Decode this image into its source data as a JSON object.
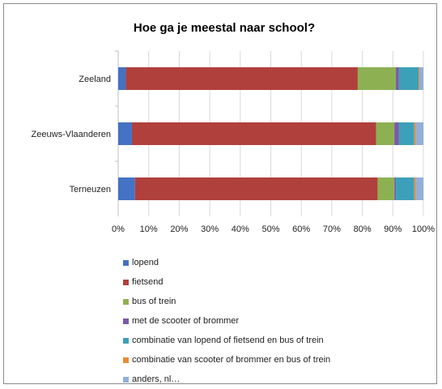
{
  "chart_data": {
    "type": "bar",
    "orientation": "horizontal",
    "stacked": true,
    "title": "Hoe ga je meestal naar school?",
    "categories": [
      "Zeeland",
      "Zeeuws-Vlaanderen",
      "Terneuzen"
    ],
    "xlim": [
      0,
      100
    ],
    "x_ticks": [
      "0%",
      "10%",
      "20%",
      "30%",
      "40%",
      "50%",
      "60%",
      "70%",
      "80%",
      "90%",
      "100%"
    ],
    "grid": true,
    "legend_position": "bottom",
    "series": [
      {
        "name": "lopend",
        "color": "#4472C4",
        "values": [
          2.5,
          4.5,
          5.5
        ]
      },
      {
        "name": "fietsend",
        "color": "#B0403C",
        "values": [
          76,
          80,
          79.5
        ]
      },
      {
        "name": "bus of trein",
        "color": "#8DB152",
        "values": [
          12.5,
          6,
          5.5
        ]
      },
      {
        "name": "met de scooter of brommer",
        "color": "#7B5AA6",
        "values": [
          1,
          1.5,
          0.5
        ]
      },
      {
        "name": "combinatie van lopend of fietsend en bus of trein",
        "color": "#3DA0B9",
        "values": [
          6.5,
          5,
          6
        ]
      },
      {
        "name": "combinatie van scooter of brommer en bus of trein",
        "color": "#ED8B34",
        "values": [
          0.3,
          0.5,
          0.5
        ]
      },
      {
        "name": "anders, nl…",
        "color": "#93AEDB",
        "values": [
          1.2,
          2.5,
          2.5
        ]
      }
    ]
  }
}
